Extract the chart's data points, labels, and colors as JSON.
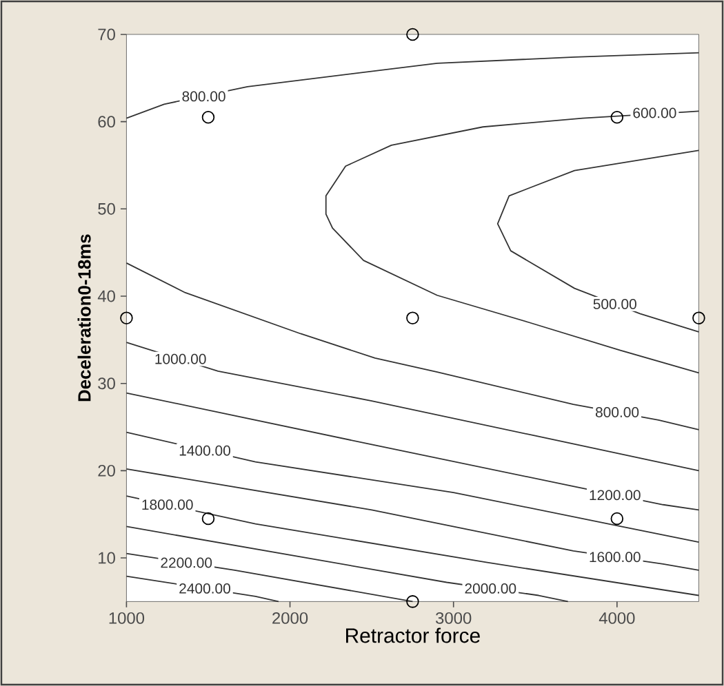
{
  "chart_data": {
    "type": "line",
    "xlabel": "Retractor force",
    "ylabel": "Deceleration0-18ms",
    "xlim": [
      1000,
      4500
    ],
    "ylim": [
      5,
      70
    ],
    "xticks": [
      1000,
      2000,
      3000,
      4000
    ],
    "yticks": [
      10,
      20,
      30,
      40,
      50,
      60,
      70
    ],
    "grid": false,
    "series": [
      {
        "color": "#333333",
        "marker": "none",
        "x": [
          1000,
          1230,
          1740,
          2900,
          3740,
          4500
        ],
        "values": [
          60.4,
          62.0,
          64.0,
          66.7,
          67.4,
          67.9
        ]
      },
      {
        "color": "#333333",
        "marker": "none",
        "x": [
          4500,
          4420,
          3790,
          3180,
          2620,
          2340,
          2220,
          2220,
          2260,
          2450,
          2900,
          3460,
          4020,
          4500
        ],
        "values": [
          61.2,
          61.1,
          60.4,
          59.4,
          57.3,
          54.9,
          51.5,
          49.4,
          47.8,
          44.1,
          40.1,
          37.0,
          33.8,
          31.2
        ]
      },
      {
        "color": "#333333",
        "marker": "none",
        "x": [
          4500,
          3740,
          3340,
          3270,
          3350,
          3740,
          4140,
          4500
        ],
        "values": [
          56.7,
          54.4,
          51.5,
          48.3,
          45.2,
          40.9,
          38.0,
          35.9
        ]
      },
      {
        "color": "#333333",
        "marker": "none",
        "x": [
          1000,
          1360,
          2065,
          2520,
          2900,
          3733,
          4254,
          4500
        ],
        "values": [
          43.8,
          40.4,
          35.7,
          32.9,
          31.3,
          27.6,
          25.8,
          24.7
        ]
      },
      {
        "color": "#333333",
        "marker": "none",
        "x": [
          1000,
          1560,
          2500,
          3500,
          4500
        ],
        "values": [
          34.7,
          31.4,
          28.0,
          24.0,
          20.0
        ]
      },
      {
        "color": "#333333",
        "marker": "none",
        "x": [
          1000,
          2500,
          3733,
          4282,
          4500
        ],
        "values": [
          28.9,
          23.0,
          18.2,
          16.1,
          15.5
        ]
      },
      {
        "color": "#333333",
        "marker": "none",
        "x": [
          1000,
          1789,
          3000,
          4500
        ],
        "values": [
          24.4,
          21.0,
          17.5,
          11.8
        ]
      },
      {
        "color": "#333333",
        "marker": "none",
        "x": [
          1000,
          2500,
          3733,
          4282,
          4500
        ],
        "values": [
          20.2,
          15.5,
          10.8,
          9.3,
          8.6
        ]
      },
      {
        "color": "#333333",
        "marker": "none",
        "x": [
          1000,
          1789,
          3200,
          4500
        ],
        "values": [
          17.1,
          13.9,
          9.5,
          5.7
        ]
      },
      {
        "color": "#333333",
        "marker": "none",
        "x": [
          1000,
          2958,
          3521,
          3700
        ],
        "values": [
          13.6,
          7.2,
          5.7,
          5.0
        ]
      },
      {
        "color": "#333333",
        "marker": "none",
        "x": [
          1000,
          1662,
          2750
        ],
        "values": [
          10.5,
          8.6,
          5.0
        ]
      },
      {
        "color": "#333333",
        "marker": "none",
        "x": [
          1000,
          1789,
          1930
        ],
        "values": [
          7.9,
          5.6,
          5.0
        ]
      },
      {
        "type": "scatter",
        "color": "#000000",
        "marker": "circle",
        "x": [
          2750,
          1500,
          4000,
          1000,
          2750,
          4500,
          1500,
          4000,
          2750
        ],
        "values": [
          70,
          60.5,
          60.5,
          37.5,
          37.5,
          37.5,
          14.5,
          14.5,
          5
        ]
      }
    ],
    "annotations": [
      {
        "text": "800.00",
        "x": 1473,
        "y": 62.9
      },
      {
        "text": "600.00",
        "x": 4230,
        "y": 61.0
      },
      {
        "text": "500.00",
        "x": 3987,
        "y": 39.1
      },
      {
        "text": "800.00",
        "x": 4001,
        "y": 26.7
      },
      {
        "text": "1000.00",
        "x": 1330,
        "y": 32.8
      },
      {
        "text": "1200.00",
        "x": 3987,
        "y": 17.2
      },
      {
        "text": "1400.00",
        "x": 1479,
        "y": 22.3
      },
      {
        "text": "1600.00",
        "x": 3987,
        "y": 10.1
      },
      {
        "text": "1800.00",
        "x": 1250,
        "y": 16.1
      },
      {
        "text": "2000.00",
        "x": 3226,
        "y": 6.5
      },
      {
        "text": "2200.00",
        "x": 1366,
        "y": 9.45
      },
      {
        "text": "2400.00",
        "x": 1479,
        "y": 6.5
      }
    ]
  }
}
